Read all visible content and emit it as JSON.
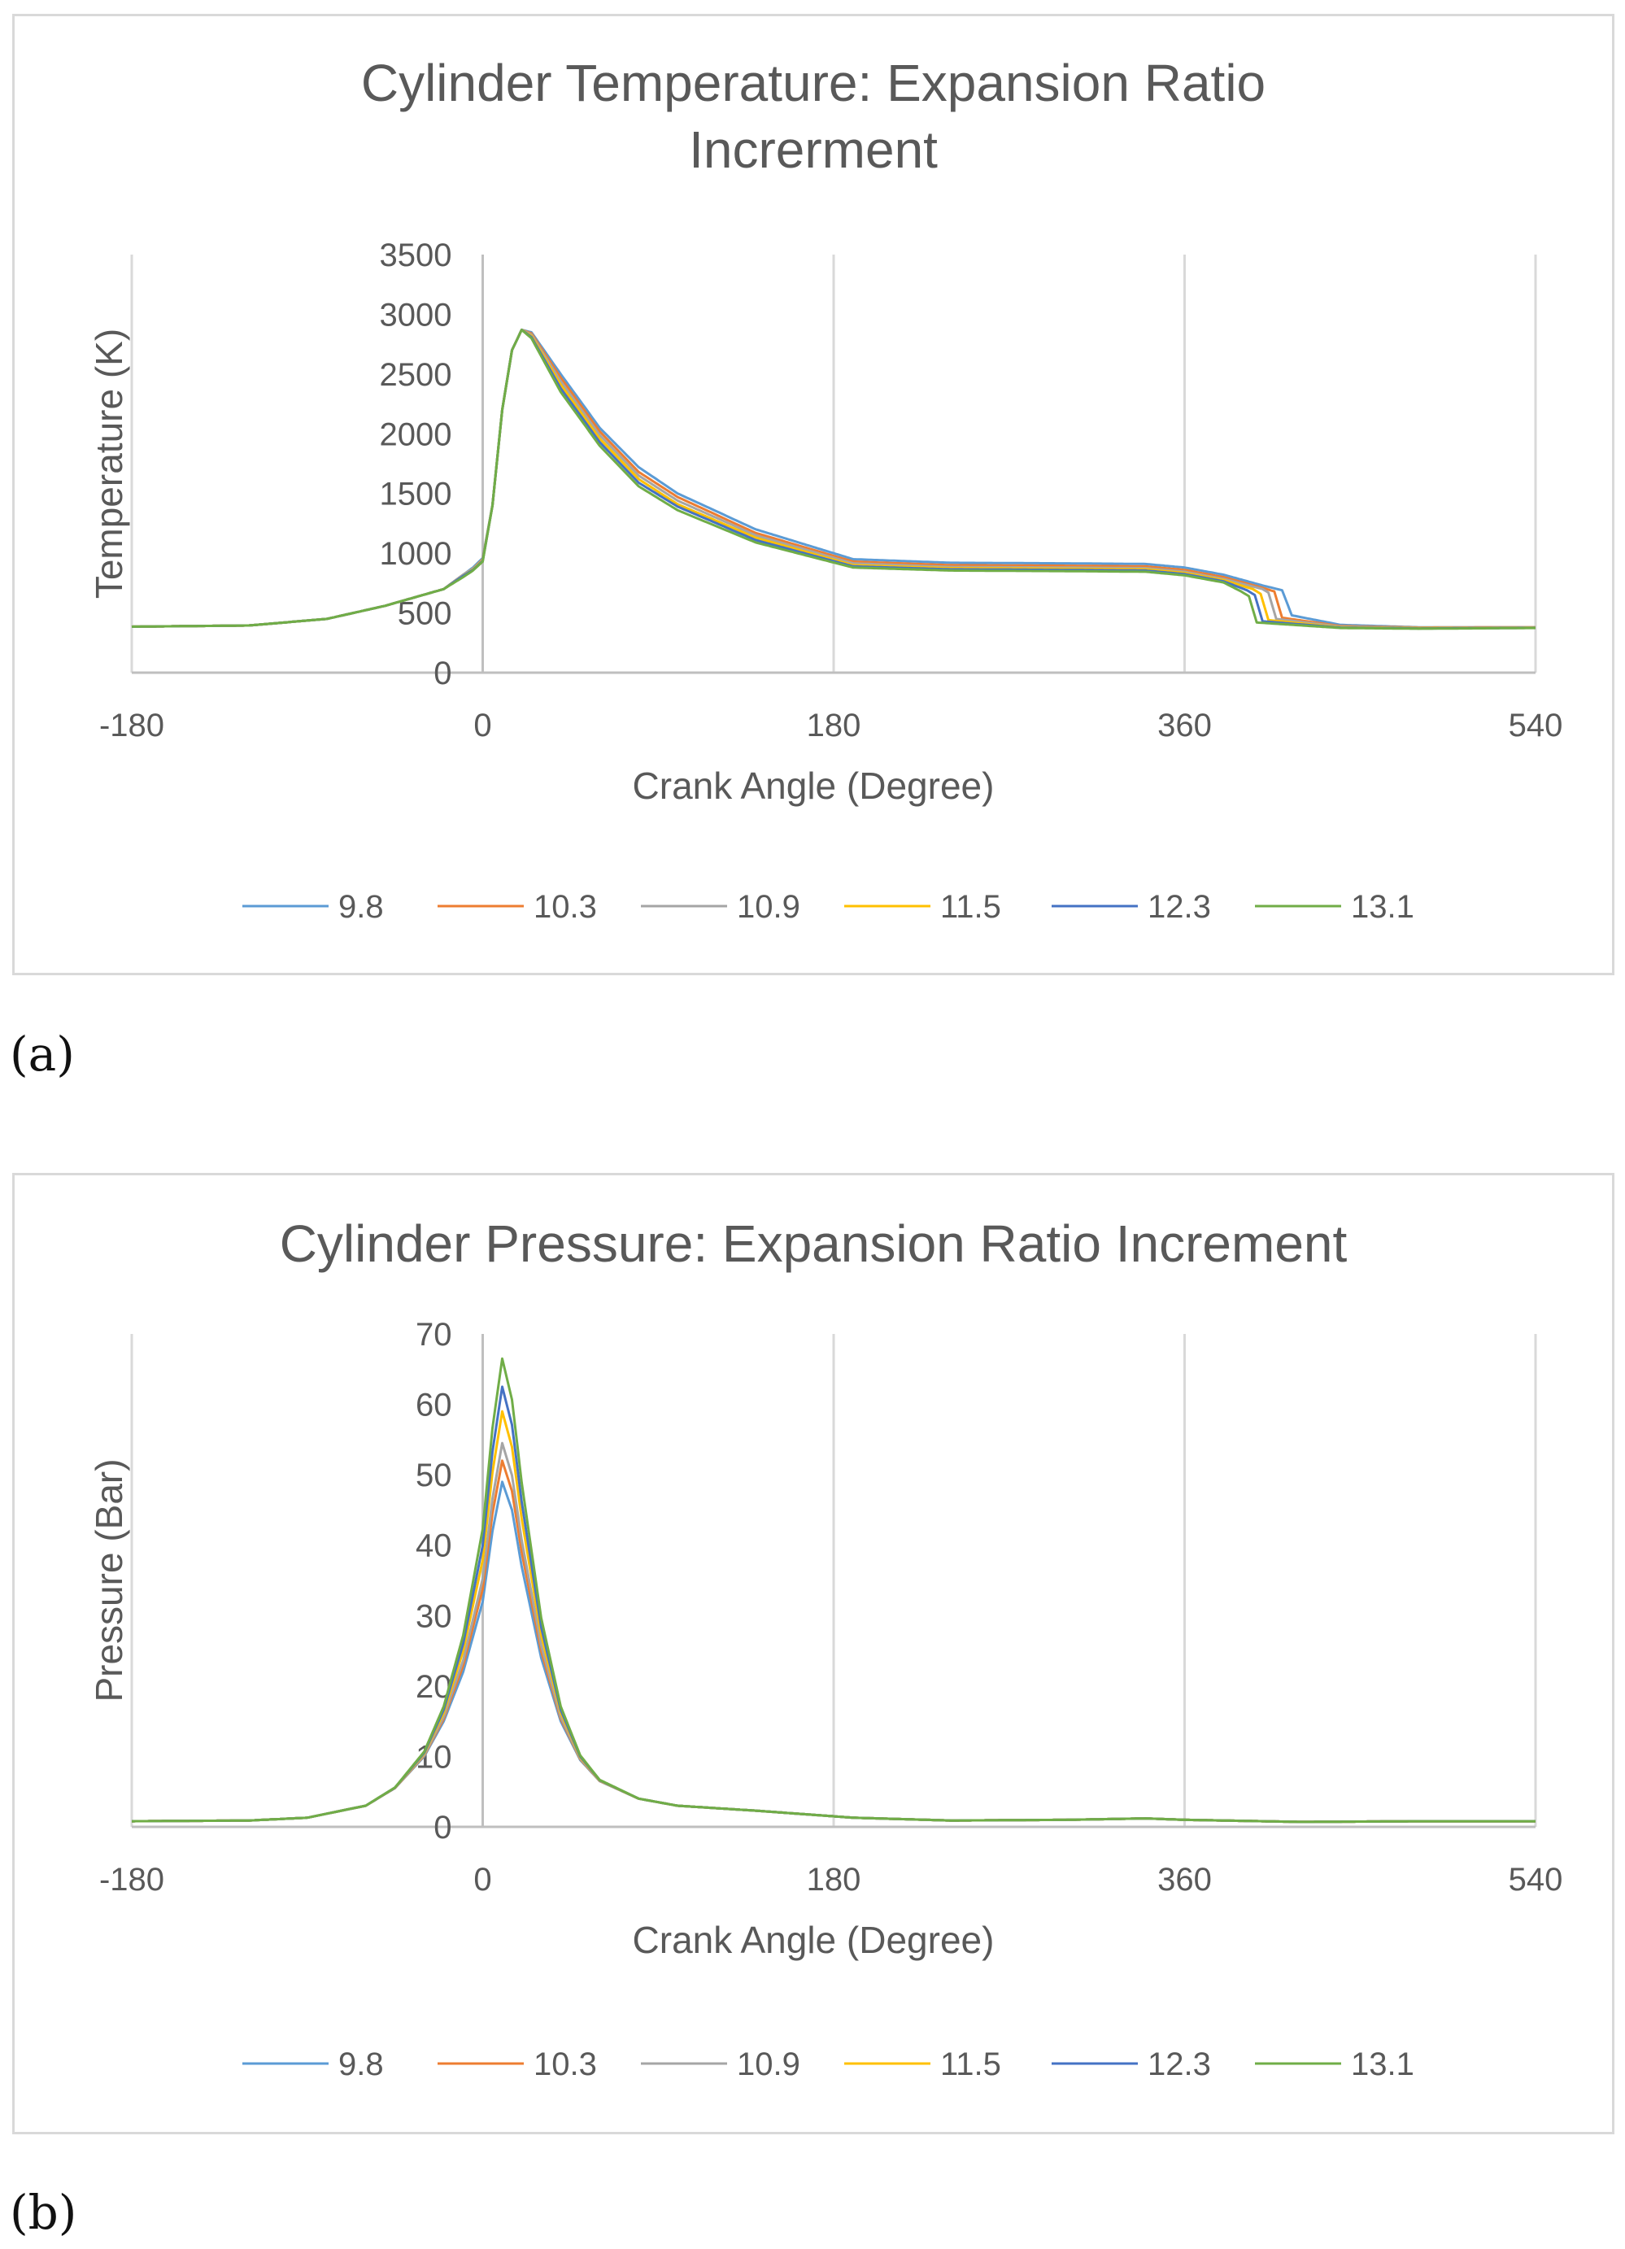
{
  "chart_data": [
    {
      "type": "line",
      "id": "temperature",
      "title_lines": [
        "Cylinder Temperature: Expansion Ratio",
        "Increrment"
      ],
      "xlabel": "Crank Angle (Degree)",
      "ylabel": "Temperature (K)",
      "xlim": [
        -180,
        540
      ],
      "ylim": [
        0,
        3500
      ],
      "x_ticks": [
        -180,
        0,
        180,
        360,
        540
      ],
      "y_ticks": [
        0,
        500,
        1000,
        1500,
        2000,
        2500,
        3000,
        3500
      ],
      "grid": "vertical",
      "legend_position": "bottom",
      "series": [
        {
          "name": "9.8",
          "color": "#5B9BD5",
          "points": [
            [
              -180,
              385
            ],
            [
              -120,
              395
            ],
            [
              -80,
              450
            ],
            [
              -50,
              560
            ],
            [
              -20,
              700
            ],
            [
              -10,
              820
            ],
            [
              -5,
              880
            ],
            [
              0,
              960
            ],
            [
              5,
              1400
            ],
            [
              10,
              2200
            ],
            [
              15,
              2700
            ],
            [
              20,
              2870
            ],
            [
              25,
              2850
            ],
            [
              40,
              2500
            ],
            [
              60,
              2050
            ],
            [
              80,
              1720
            ],
            [
              100,
              1500
            ],
            [
              140,
              1200
            ],
            [
              190,
              950
            ],
            [
              240,
              920
            ],
            [
              300,
              915
            ],
            [
              340,
              910
            ],
            [
              360,
              880
            ],
            [
              380,
              820
            ],
            [
              400,
              730
            ],
            [
              410,
              690
            ],
            [
              415,
              480
            ],
            [
              440,
              400
            ],
            [
              480,
              380
            ],
            [
              540,
              380
            ]
          ]
        },
        {
          "name": "10.3",
          "color": "#ED7D31",
          "points": [
            [
              -180,
              385
            ],
            [
              -120,
              395
            ],
            [
              -80,
              450
            ],
            [
              -50,
              560
            ],
            [
              -20,
              700
            ],
            [
              -10,
              820
            ],
            [
              -5,
              870
            ],
            [
              0,
              950
            ],
            [
              5,
              1400
            ],
            [
              10,
              2200
            ],
            [
              15,
              2700
            ],
            [
              20,
              2870
            ],
            [
              25,
              2840
            ],
            [
              40,
              2470
            ],
            [
              60,
              2020
            ],
            [
              80,
              1680
            ],
            [
              100,
              1470
            ],
            [
              140,
              1170
            ],
            [
              190,
              930
            ],
            [
              240,
              900
            ],
            [
              300,
              895
            ],
            [
              340,
              890
            ],
            [
              360,
              860
            ],
            [
              380,
              800
            ],
            [
              400,
              710
            ],
            [
              406,
              680
            ],
            [
              410,
              460
            ],
            [
              440,
              390
            ],
            [
              480,
              378
            ],
            [
              540,
              380
            ]
          ]
        },
        {
          "name": "10.9",
          "color": "#A5A5A5",
          "points": [
            [
              -180,
              385
            ],
            [
              -120,
              395
            ],
            [
              -80,
              450
            ],
            [
              -50,
              560
            ],
            [
              -20,
              700
            ],
            [
              -10,
              820
            ],
            [
              -5,
              870
            ],
            [
              0,
              945
            ],
            [
              5,
              1400
            ],
            [
              10,
              2200
            ],
            [
              15,
              2700
            ],
            [
              20,
              2870
            ],
            [
              25,
              2830
            ],
            [
              40,
              2440
            ],
            [
              60,
              1990
            ],
            [
              80,
              1650
            ],
            [
              100,
              1440
            ],
            [
              140,
              1150
            ],
            [
              190,
              915
            ],
            [
              240,
              885
            ],
            [
              300,
              880
            ],
            [
              340,
              875
            ],
            [
              360,
              845
            ],
            [
              380,
              785
            ],
            [
              400,
              700
            ],
            [
              403,
              670
            ],
            [
              407,
              450
            ],
            [
              440,
              385
            ],
            [
              480,
              375
            ],
            [
              540,
              378
            ]
          ]
        },
        {
          "name": "11.5",
          "color": "#FFC000",
          "points": [
            [
              -180,
              385
            ],
            [
              -120,
              395
            ],
            [
              -80,
              450
            ],
            [
              -50,
              560
            ],
            [
              -20,
              700
            ],
            [
              -10,
              810
            ],
            [
              -5,
              865
            ],
            [
              0,
              940
            ],
            [
              5,
              1400
            ],
            [
              10,
              2200
            ],
            [
              15,
              2700
            ],
            [
              20,
              2870
            ],
            [
              25,
              2820
            ],
            [
              40,
              2410
            ],
            [
              60,
              1960
            ],
            [
              80,
              1620
            ],
            [
              100,
              1410
            ],
            [
              140,
              1130
            ],
            [
              190,
              900
            ],
            [
              240,
              875
            ],
            [
              300,
              870
            ],
            [
              340,
              865
            ],
            [
              360,
              835
            ],
            [
              380,
              775
            ],
            [
              395,
              700
            ],
            [
              399,
              660
            ],
            [
              403,
              440
            ],
            [
              440,
              380
            ],
            [
              480,
              372
            ],
            [
              540,
              376
            ]
          ]
        },
        {
          "name": "12.3",
          "color": "#4472C4",
          "points": [
            [
              -180,
              385
            ],
            [
              -120,
              395
            ],
            [
              -80,
              450
            ],
            [
              -50,
              560
            ],
            [
              -20,
              700
            ],
            [
              -10,
              810
            ],
            [
              -5,
              860
            ],
            [
              0,
              935
            ],
            [
              5,
              1400
            ],
            [
              10,
              2200
            ],
            [
              15,
              2700
            ],
            [
              20,
              2870
            ],
            [
              25,
              2810
            ],
            [
              40,
              2380
            ],
            [
              60,
              1930
            ],
            [
              80,
              1590
            ],
            [
              100,
              1390
            ],
            [
              140,
              1110
            ],
            [
              190,
              890
            ],
            [
              240,
              865
            ],
            [
              300,
              860
            ],
            [
              340,
              855
            ],
            [
              360,
              825
            ],
            [
              380,
              765
            ],
            [
              392,
              690
            ],
            [
              396,
              650
            ],
            [
              400,
              430
            ],
            [
              440,
              377
            ],
            [
              480,
              370
            ],
            [
              540,
              375
            ]
          ]
        },
        {
          "name": "13.1",
          "color": "#70AD47",
          "points": [
            [
              -180,
              385
            ],
            [
              -120,
              395
            ],
            [
              -80,
              450
            ],
            [
              -50,
              560
            ],
            [
              -20,
              700
            ],
            [
              -10,
              800
            ],
            [
              -5,
              855
            ],
            [
              0,
              930
            ],
            [
              5,
              1400
            ],
            [
              10,
              2200
            ],
            [
              15,
              2700
            ],
            [
              20,
              2870
            ],
            [
              25,
              2800
            ],
            [
              40,
              2350
            ],
            [
              60,
              1900
            ],
            [
              80,
              1560
            ],
            [
              100,
              1360
            ],
            [
              140,
              1090
            ],
            [
              190,
              880
            ],
            [
              240,
              855
            ],
            [
              300,
              850
            ],
            [
              340,
              845
            ],
            [
              360,
              815
            ],
            [
              380,
              755
            ],
            [
              389,
              680
            ],
            [
              393,
              640
            ],
            [
              397,
              420
            ],
            [
              440,
              374
            ],
            [
              480,
              368
            ],
            [
              540,
              374
            ]
          ]
        }
      ]
    },
    {
      "type": "line",
      "id": "pressure",
      "title_lines": [
        "Cylinder Pressure: Expansion Ratio Increment"
      ],
      "xlabel": "Crank Angle (Degree)",
      "ylabel": "Pressure (Bar)",
      "xlim": [
        -180,
        540
      ],
      "ylim": [
        0,
        70
      ],
      "x_ticks": [
        -180,
        0,
        180,
        360,
        540
      ],
      "y_ticks": [
        0,
        10,
        20,
        30,
        40,
        50,
        60,
        70
      ],
      "grid": "vertical",
      "legend_position": "bottom",
      "peak_values": {
        "9.8": 49,
        "10.3": 52,
        "10.9": 54.5,
        "11.5": 59,
        "12.3": 62.5,
        "13.1": 66.5
      },
      "series": [
        {
          "name": "9.8",
          "color": "#5B9BD5"
        },
        {
          "name": "10.3",
          "color": "#ED7D31"
        },
        {
          "name": "10.9",
          "color": "#A5A5A5"
        },
        {
          "name": "11.5",
          "color": "#FFC000"
        },
        {
          "name": "12.3",
          "color": "#4472C4"
        },
        {
          "name": "13.1",
          "color": "#70AD47"
        }
      ],
      "base_curve": [
        [
          -180,
          0.8
        ],
        [
          -120,
          0.9
        ],
        [
          -90,
          1.3
        ],
        [
          -60,
          3
        ],
        [
          -45,
          5.5
        ],
        [
          -30,
          10
        ],
        [
          -20,
          15
        ],
        [
          -10,
          22
        ],
        [
          0,
          32
        ],
        [
          5,
          42
        ],
        [
          10,
          49
        ],
        [
          15,
          45
        ],
        [
          20,
          37
        ],
        [
          30,
          24
        ],
        [
          40,
          15
        ],
        [
          50,
          9.5
        ],
        [
          60,
          6.5
        ],
        [
          80,
          4
        ],
        [
          100,
          3
        ],
        [
          140,
          2.3
        ],
        [
          190,
          1.3
        ],
        [
          240,
          0.9
        ],
        [
          300,
          1
        ],
        [
          340,
          1.2
        ],
        [
          360,
          1
        ],
        [
          420,
          0.7
        ],
        [
          480,
          0.8
        ],
        [
          540,
          0.8
        ]
      ]
    }
  ],
  "labels": {
    "a": "(a)",
    "b": "(b)"
  }
}
